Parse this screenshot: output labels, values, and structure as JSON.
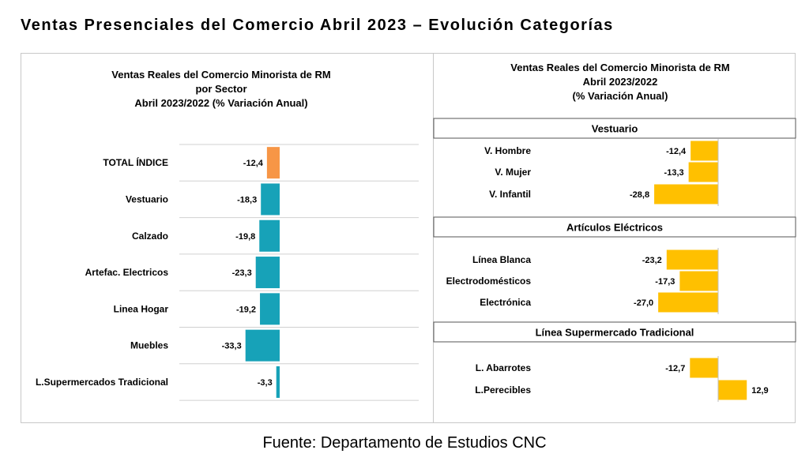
{
  "page_title": "Ventas Presenciales del Comercio Abril 2023 – Evolución Categorías",
  "source": "Fuente: Departamento de Estudios CNC",
  "colors": {
    "total": "#f79646",
    "sector": "#17a2b8",
    "category": "#ffc000"
  },
  "chart_data": [
    {
      "type": "bar",
      "orientation": "horizontal",
      "title_lines": [
        "Ventas Reales del Comercio Minorista de RM",
        "por Sector",
        "Abril 2023/2022 (% Variación Anual)"
      ],
      "categories": [
        "TOTAL ÍNDICE",
        "Vestuario",
        "Calzado",
        "Artefac. Electricos",
        "Linea Hogar",
        "Muebles",
        "L.Supermercados Tradicional"
      ],
      "values": [
        -12.4,
        -18.3,
        -19.8,
        -23.3,
        -19.2,
        -33.3,
        -3.3
      ],
      "labels": [
        "-12,4",
        "-18,3",
        "-19,8",
        "-23,3",
        "-19,2",
        "-33,3",
        "-3,3"
      ],
      "grid": true
    },
    {
      "type": "bar",
      "orientation": "horizontal",
      "title_lines": [
        "Ventas Reales del Comercio Minorista de RM",
        "Abril 2023/2022",
        "(% Variación Anual)"
      ],
      "groups": [
        {
          "name": "Vestuario",
          "categories": [
            "V. Hombre",
            "V. Mujer",
            "V. Infantil"
          ],
          "values": [
            -12.4,
            -13.3,
            -28.8
          ],
          "labels": [
            "-12,4",
            "-13,3",
            "-28,8"
          ]
        },
        {
          "name": "Artículos Eléctricos",
          "categories": [
            "Línea Blanca",
            "Electrodomésticos",
            "Electrónica"
          ],
          "values": [
            -23.2,
            -17.3,
            -27.0
          ],
          "labels": [
            "-23,2",
            "-17,3",
            "-27,0"
          ]
        },
        {
          "name": "Línea Supermercado Tradicional",
          "categories": [
            "L. Abarrotes",
            "L.Perecibles"
          ],
          "values": [
            -12.7,
            12.9
          ],
          "labels": [
            "-12,7",
            "12,9"
          ]
        }
      ]
    }
  ]
}
